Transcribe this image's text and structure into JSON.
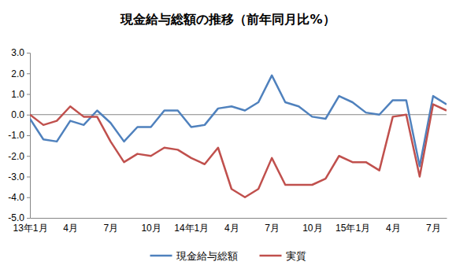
{
  "chart_data": {
    "type": "line",
    "title": "現金給与総額の推移（前年同月比%）",
    "categories": [
      "13年1月",
      null,
      null,
      "4月",
      null,
      null,
      "7月",
      null,
      null,
      "10月",
      null,
      null,
      "14年1月",
      null,
      null,
      "4月",
      null,
      null,
      "7月",
      null,
      null,
      "10月",
      null,
      null,
      "15年1月",
      null,
      null,
      "4月",
      null,
      null,
      "7月",
      null
    ],
    "series": [
      {
        "name": "現金給与総額",
        "color": "#4f81bd",
        "values": [
          -0.2,
          -1.2,
          -1.3,
          -0.3,
          -0.5,
          0.2,
          -0.4,
          -1.3,
          -0.6,
          -0.6,
          0.2,
          0.2,
          -0.6,
          -0.5,
          0.3,
          0.4,
          0.2,
          0.6,
          1.9,
          0.6,
          0.4,
          -0.1,
          -0.2,
          0.9,
          0.6,
          0.1,
          0.0,
          0.7,
          0.7,
          -2.5,
          0.9,
          0.5
        ]
      },
      {
        "name": "実質",
        "color": "#c0504d",
        "values": [
          0.0,
          -0.5,
          -0.3,
          0.4,
          -0.1,
          -0.1,
          -1.3,
          -2.3,
          -1.9,
          -2.0,
          -1.6,
          -1.7,
          -2.1,
          -2.4,
          -1.6,
          -3.6,
          -4.0,
          -3.6,
          -2.1,
          -3.4,
          -3.4,
          -3.4,
          -3.1,
          -2.0,
          -2.3,
          -2.3,
          -2.7,
          -0.1,
          0.0,
          -3.0,
          0.5,
          0.2
        ]
      }
    ],
    "ylim": [
      -5,
      3
    ],
    "yticks": [
      {
        "value": -5,
        "label": "-5.0"
      },
      {
        "value": -4,
        "label": "-4.0"
      },
      {
        "value": -3,
        "label": "-3.0"
      },
      {
        "value": -2,
        "label": "-2.0"
      },
      {
        "value": -1,
        "label": "-1.0"
      },
      {
        "value": 0,
        "label": "0.0"
      },
      {
        "value": 1,
        "label": "1.0"
      },
      {
        "value": 2,
        "label": "2.0"
      },
      {
        "value": 3,
        "label": "3.0"
      }
    ],
    "grid": false,
    "legend": "bottom"
  }
}
